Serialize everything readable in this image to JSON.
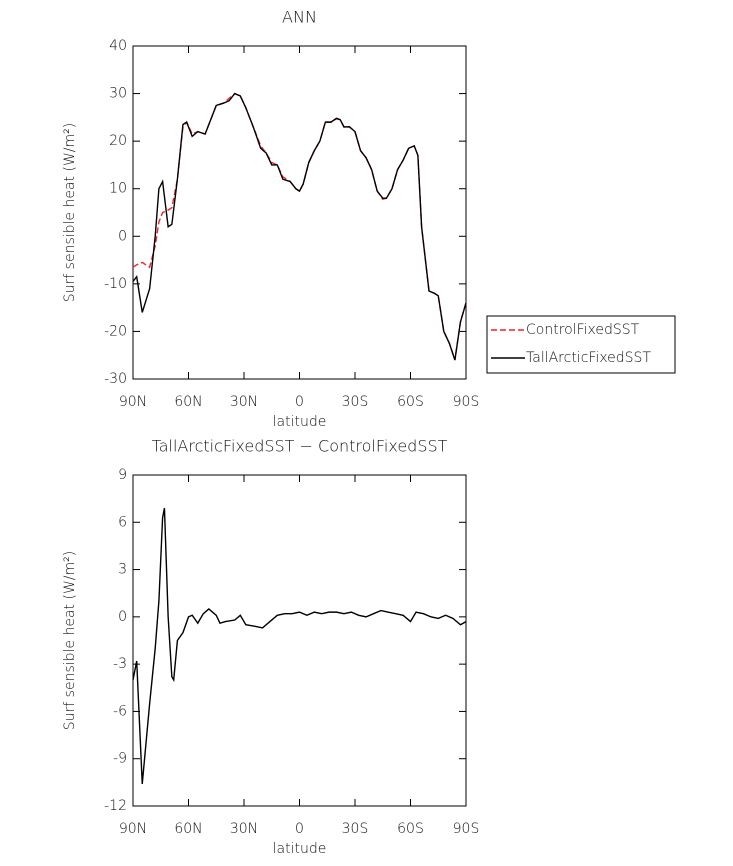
{
  "chart_data": [
    {
      "type": "line",
      "title": "ANN",
      "ylabel": "Surf sensible heat (W/m²)",
      "xlabel": "latitude",
      "x": [
        90,
        88,
        85,
        81,
        78,
        76,
        74,
        71,
        69,
        66,
        63,
        61,
        58,
        55,
        51,
        48,
        45,
        41,
        38,
        35,
        32,
        29,
        25,
        21,
        18,
        15,
        12,
        9,
        5,
        2,
        0,
        -2,
        -5,
        -8,
        -11,
        -14,
        -17,
        -20,
        -22,
        -24,
        -27,
        -30,
        -33,
        -36,
        -39,
        -42,
        -45,
        -47,
        -50,
        -53,
        -56,
        -59,
        -62,
        -64,
        -66,
        -70,
        -73,
        -75,
        -78,
        -81,
        -84,
        -87,
        -90
      ],
      "xlim": [
        90,
        -90
      ],
      "xticks": [
        {
          "value": 90,
          "label": "90N"
        },
        {
          "value": 60,
          "label": "60N"
        },
        {
          "value": 30,
          "label": "30N"
        },
        0,
        {
          "value": -30,
          "label": "30S"
        },
        {
          "value": -60,
          "label": "60S"
        },
        {
          "value": -90,
          "label": "90S"
        }
      ],
      "ylim": [
        -30,
        40
      ],
      "yticks": [
        -30,
        -20,
        -10,
        0,
        10,
        20,
        30,
        40
      ],
      "legend": "right",
      "series": [
        {
          "name": "ControlFixedSST",
          "color": "#e8262b",
          "dashed": true,
          "values": [
            -6.5,
            -6,
            -5.5,
            -6.5,
            -2,
            3,
            5,
            5.5,
            6,
            12,
            23,
            24,
            21.5,
            22,
            21.5,
            24.5,
            27.5,
            28,
            29,
            30,
            29.5,
            27,
            23,
            19,
            17.5,
            15.5,
            15,
            12.5,
            11.5,
            10,
            9.5,
            11,
            15.5,
            18,
            20,
            24,
            24,
            24.7,
            24.5,
            23,
            23,
            22,
            18,
            16.5,
            14,
            9.5,
            7.8,
            8,
            10,
            14,
            16,
            18.5,
            19,
            17,
            2,
            -11.5,
            -12,
            -12.5,
            -20,
            -22.5,
            -26,
            -18,
            -14
          ]
        },
        {
          "name": "TallArcticFixedSST",
          "color": "#000000",
          "dashed": false,
          "values": [
            -9.5,
            -8.5,
            -16,
            -11,
            0,
            10,
            11.5,
            2,
            2.5,
            12,
            23.5,
            24,
            21,
            22,
            21.5,
            24.5,
            27.5,
            28,
            28.5,
            30,
            29.5,
            27,
            23,
            18.5,
            17.5,
            15,
            15,
            12,
            11.5,
            10,
            9.5,
            11,
            15.5,
            18,
            20,
            24,
            24,
            24.8,
            24.5,
            23,
            23,
            22,
            18,
            16.5,
            14,
            9.5,
            8,
            8,
            10,
            14,
            16,
            18.5,
            19,
            17,
            2,
            -11.5,
            -12,
            -12.5,
            -20,
            -22.5,
            -26,
            -18,
            -14
          ]
        }
      ]
    },
    {
      "type": "line",
      "title": "TallArcticFixedSST − ControlFixedSST",
      "ylabel": "Surf sensible heat (W/m²)",
      "xlabel": "latitude",
      "x": [
        90,
        88,
        85,
        81,
        78,
        76,
        74,
        73,
        71,
        69,
        68,
        66,
        63,
        60,
        58,
        55,
        52,
        49,
        45,
        43,
        40,
        35,
        32,
        29,
        24,
        20,
        16,
        12,
        8,
        4,
        0,
        -4,
        -8,
        -12,
        -16,
        -20,
        -24,
        -28,
        -32,
        -36,
        -40,
        -44,
        -48,
        -52,
        -56,
        -60,
        -63,
        -67,
        -71,
        -75,
        -79,
        -83,
        -87,
        -90
      ],
      "xlim": [
        90,
        -90
      ],
      "xticks": [
        {
          "value": 90,
          "label": "90N"
        },
        {
          "value": 60,
          "label": "60N"
        },
        {
          "value": 30,
          "label": "30N"
        },
        0,
        {
          "value": -30,
          "label": "30S"
        },
        {
          "value": -60,
          "label": "60S"
        },
        {
          "value": -90,
          "label": "90S"
        }
      ],
      "ylim": [
        -12,
        9
      ],
      "yticks": [
        -12,
        -9,
        -6,
        -3,
        0,
        3,
        6,
        9
      ],
      "series": [
        {
          "color": "#000000",
          "dashed": false,
          "values": [
            -4,
            -2.8,
            -10.6,
            -5.5,
            -2,
            1,
            6.3,
            6.9,
            0,
            -3.8,
            -4,
            -1.5,
            -1,
            0,
            0.1,
            -0.4,
            0.2,
            0.5,
            0.1,
            -0.4,
            -0.3,
            -0.2,
            0.1,
            -0.5,
            -0.6,
            -0.7,
            -0.3,
            0.1,
            0.2,
            0.2,
            0.3,
            0.1,
            0.3,
            0.2,
            0.3,
            0.3,
            0.2,
            0.3,
            0.1,
            0,
            0.2,
            0.4,
            0.3,
            0.2,
            0.1,
            -0.3,
            0.3,
            0.2,
            0,
            -0.1,
            0.1,
            -0.1,
            -0.5,
            -0.3
          ]
        }
      ]
    }
  ]
}
